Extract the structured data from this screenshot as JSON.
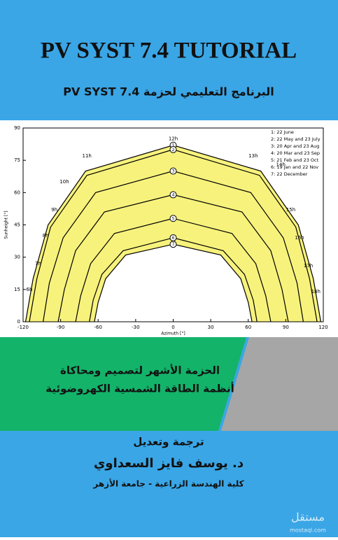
{
  "header": {
    "title": "PV SYST 7.4 TUTORIAL",
    "subtitle": "البرنامج التعليمي لحزمة PV SYST 7.4"
  },
  "chart_data": {
    "type": "line",
    "x_label": "Azimuth [°]",
    "y_label": "Sunheight [°]",
    "xlim": [
      -120,
      120
    ],
    "xticks": [
      -120,
      -90,
      -60,
      -30,
      0,
      30,
      60,
      90,
      120
    ],
    "ylim": [
      0,
      90
    ],
    "yticks": [
      0,
      15,
      30,
      45,
      60,
      75,
      90
    ],
    "fill_color": "#f7f27c",
    "series": [
      {
        "name": "1: 22 June",
        "label": "1",
        "color": "#000000",
        "x": [
          -118,
          -112,
          -100,
          -70,
          0,
          70,
          100,
          112,
          118
        ],
        "values": [
          0,
          20,
          45,
          70,
          82,
          70,
          45,
          20,
          0
        ]
      },
      {
        "name": "2: 22 May and 23 July",
        "label": "2",
        "color": "#000000",
        "x": [
          -115,
          -109,
          -98,
          -69,
          0,
          69,
          98,
          109,
          115
        ],
        "values": [
          0,
          20,
          44,
          68,
          80,
          68,
          44,
          20,
          0
        ]
      },
      {
        "name": "3: 20 Apr and 23 Aug",
        "label": "3",
        "color": "#000000",
        "x": [
          -104,
          -99,
          -88,
          -62,
          0,
          62,
          88,
          99,
          104
        ],
        "values": [
          0,
          18,
          39,
          60,
          70,
          60,
          39,
          18,
          0
        ]
      },
      {
        "name": "4: 20 Mar and 23 Sep",
        "label": "4",
        "color": "#000000",
        "x": [
          -92,
          -87,
          -78,
          -55,
          0,
          55,
          78,
          87,
          92
        ],
        "values": [
          0,
          15,
          33,
          51,
          59,
          51,
          33,
          15,
          0
        ]
      },
      {
        "name": "5: 21 Feb and 23 Oct",
        "label": "5",
        "color": "#000000",
        "x": [
          -78,
          -74,
          -66,
          -47,
          0,
          47,
          66,
          74,
          78
        ],
        "values": [
          0,
          12,
          27,
          41,
          48,
          41,
          27,
          12,
          0
        ]
      },
      {
        "name": "6: 19 Jan and 22 Nov",
        "label": "6",
        "color": "#000000",
        "x": [
          -67,
          -64,
          -57,
          -40,
          0,
          40,
          57,
          64,
          67
        ],
        "values": [
          0,
          10,
          22,
          33,
          39,
          33,
          22,
          10,
          0
        ]
      },
      {
        "name": "7: 22 December",
        "label": "7",
        "color": "#000000",
        "x": [
          -63,
          -60,
          -54,
          -38,
          0,
          38,
          54,
          60,
          63
        ],
        "values": [
          0,
          9,
          20,
          31,
          36,
          31,
          20,
          9,
          0
        ]
      }
    ],
    "annotations": [
      {
        "text": "6h",
        "x": -115,
        "y": 15
      },
      {
        "text": "7h",
        "x": -108,
        "y": 27
      },
      {
        "text": "8h",
        "x": -102,
        "y": 40
      },
      {
        "text": "9h",
        "x": -95,
        "y": 52
      },
      {
        "text": "10h",
        "x": -87,
        "y": 65
      },
      {
        "text": "11h",
        "x": -69,
        "y": 77
      },
      {
        "text": "12h",
        "x": 0,
        "y": 85
      },
      {
        "text": "13h",
        "x": 64,
        "y": 77
      },
      {
        "text": "14h",
        "x": 86,
        "y": 73
      },
      {
        "text": "15h",
        "x": 94,
        "y": 52
      },
      {
        "text": "16h",
        "x": 101,
        "y": 39
      },
      {
        "text": "17h",
        "x": 108,
        "y": 26
      },
      {
        "text": "18h",
        "x": 114,
        "y": 14
      }
    ]
  },
  "tagline": {
    "lines": [
      "الحزمة الأشهر لتصميم ومحاكاة",
      "أنظمة الطاقة الشمسية الكهروضوئية"
    ]
  },
  "credits": {
    "role": "ترجمة وتعديل",
    "author": "د. يوسف فايز السعداوي",
    "affiliation": "كلية الهندسة الزراعية - جامعة الأزهر"
  },
  "watermark": {
    "text": "مستقل",
    "url": "mostaql.com"
  }
}
